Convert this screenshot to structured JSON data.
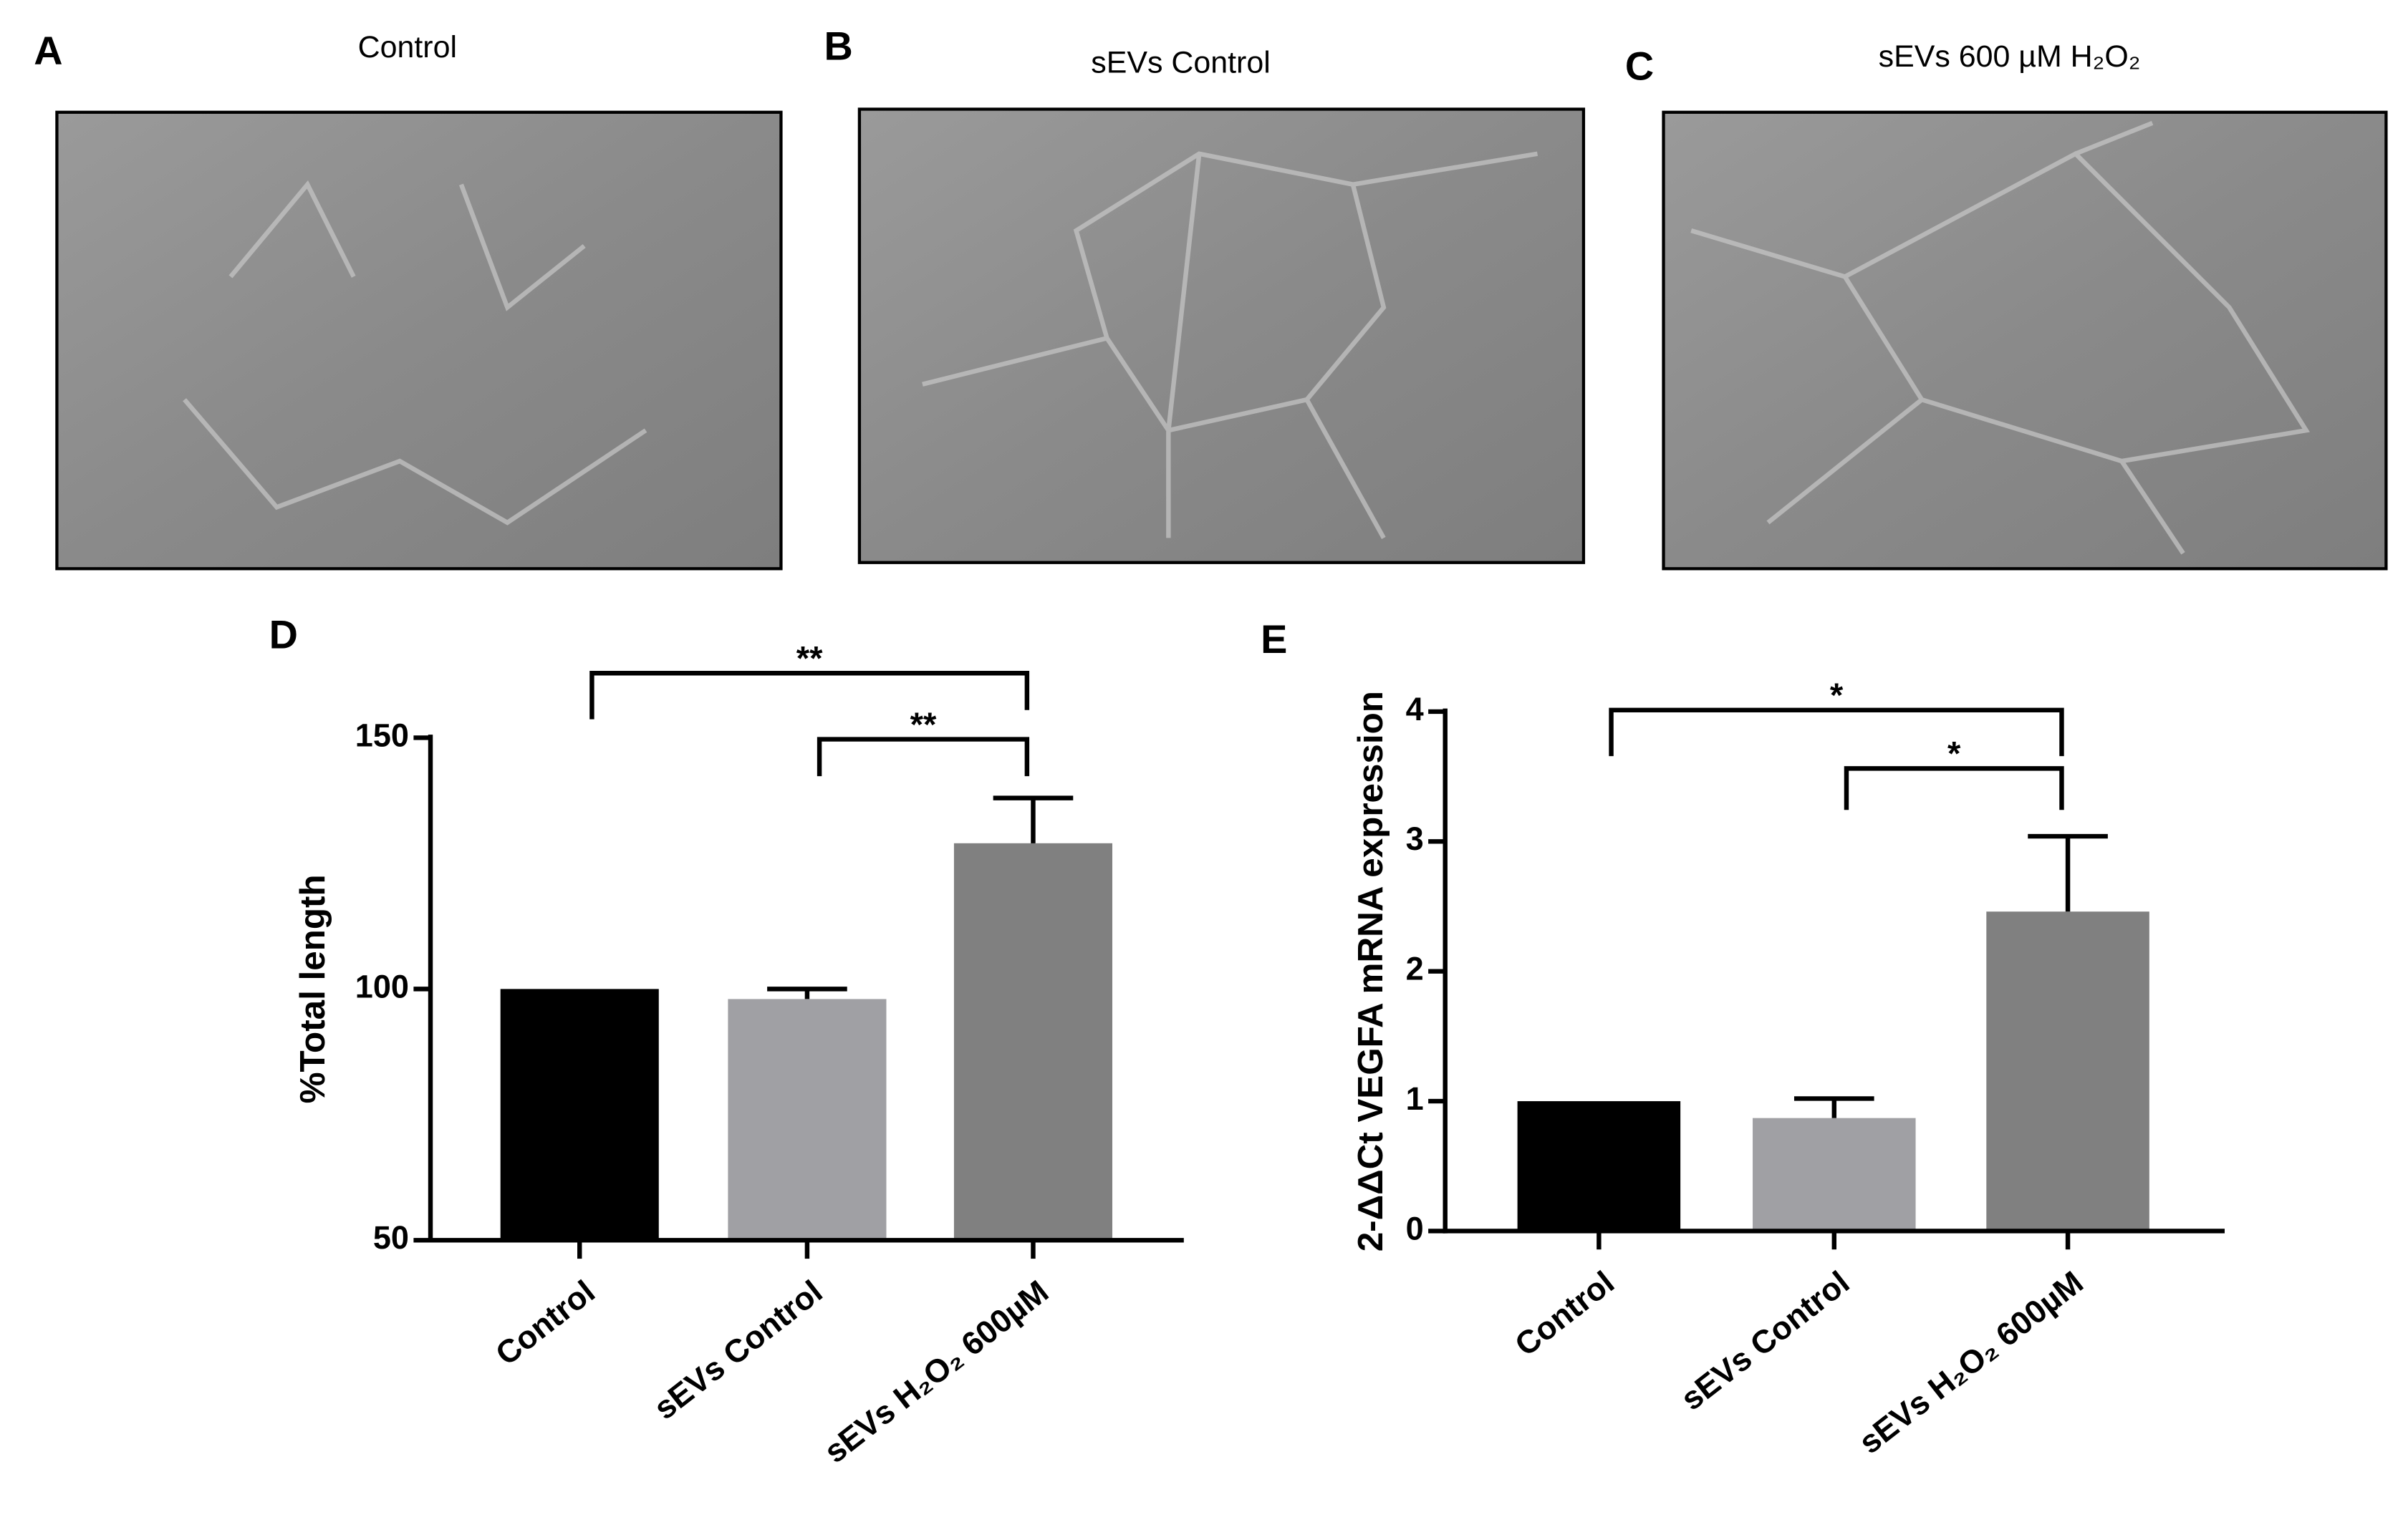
{
  "panels": [
    {
      "letter": "A",
      "title": "Control"
    },
    {
      "letter": "B",
      "title": "sEVs Control"
    },
    {
      "letter": "C",
      "title": "sEVs 600 µM H₂O₂"
    }
  ],
  "chart_data": [
    {
      "type": "bar",
      "letter": "D",
      "y_label": "%Total length",
      "categories": [
        "Control",
        "sEVs Control",
        "sEVs  H₂O₂ 600µM"
      ],
      "values": [
        100,
        98,
        129
      ],
      "errors": [
        null,
        2,
        9
      ],
      "colors": [
        "#000000",
        "#a0a0a4",
        "#808080"
      ],
      "ylim": [
        50,
        150
      ],
      "yticks": [
        50,
        100,
        150
      ],
      "annotations": [
        "**",
        "**"
      ]
    },
    {
      "type": "bar",
      "letter": "E",
      "y_label": "2-ΔΔCt VEGFA mRNA expression",
      "categories": [
        "Control",
        "sEVs Control",
        "sEVs  H₂O₂ 600µM"
      ],
      "values": [
        1,
        0.87,
        2.46
      ],
      "errors": [
        null,
        0.15,
        0.58
      ],
      "colors": [
        "#000000",
        "#a0a0a4",
        "#808080"
      ],
      "ylim": [
        0,
        4
      ],
      "yticks": [
        0,
        1,
        2,
        3,
        4
      ],
      "annotations": [
        "*",
        "*"
      ]
    }
  ]
}
